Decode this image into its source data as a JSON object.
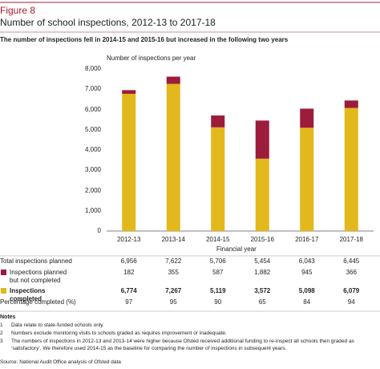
{
  "figure_label": "Figure 8",
  "chart_data": {
    "type": "stacked_bar",
    "title": "Number of school inspections, 2012-13 to 2017-18",
    "subtitle": "The number of inspections fell in 2014-15 and 2015-16 but increased in the following two years",
    "y_label": "Number of inspections per year",
    "x_label": "Financial year",
    "categories": [
      "2012-13",
      "2013-14",
      "2014-15",
      "2015-16",
      "2016-17",
      "2017-18"
    ],
    "series": [
      {
        "name": "Inspections completed",
        "color": "#e2b81c",
        "values": [
          6774,
          7267,
          5119,
          3572,
          5098,
          6079
        ],
        "value_labels": [
          "6,774",
          "7,267",
          "5,119",
          "3,572",
          "5,098",
          "6,079"
        ]
      },
      {
        "name": "Inspections planned but not completed",
        "color": "#9c1c3b",
        "values": [
          182,
          355,
          587,
          1882,
          945,
          366
        ],
        "value_labels": [
          "182",
          "355",
          "587",
          "1,882",
          "945",
          "366"
        ]
      }
    ],
    "ylim": [
      0,
      8000
    ],
    "yticks": [
      0,
      {
        "value": 1000,
        "label": "1,000"
      },
      {
        "value": 2000,
        "label": "2,000"
      },
      {
        "value": 3000,
        "label": "3,000"
      },
      {
        "value": 4000,
        "label": "4,000"
      },
      {
        "value": 5000,
        "label": "5,000"
      },
      {
        "value": 6000,
        "label": "6,000"
      },
      {
        "value": 7000,
        "label": "7,000"
      },
      {
        "value": 8000,
        "label": "8,000"
      }
    ],
    "grid": false,
    "table": {
      "total": {
        "label": "Total inspections planned",
        "cells": [
          "6,956",
          "7,622",
          "5,706",
          "5,454",
          "6,043",
          "6,445"
        ]
      },
      "percentage": {
        "label": "Percentage completed (%)",
        "cells": [
          97,
          95,
          90,
          65,
          84,
          94
        ]
      }
    }
  },
  "notes": {
    "heading": "Notes",
    "items": [
      {
        "number": "1",
        "text": "Data relate to state-funded schools only."
      },
      {
        "number": "2",
        "text": "Numbers exclude monitoring visits to schools graded as requires improvement or inadequate."
      },
      {
        "number": "3",
        "text": "The numbers of inspections in 2012-13 and 2013-14 were higher because Ofsted received additional funding to re-inspect all schools then graded as ‘satisfactory’. We therefore used 2014-15 as the baseline for comparing the number of inspections in subsequent years."
      }
    ]
  },
  "source": "Source: National Audit Office analysis of Ofsted data"
}
